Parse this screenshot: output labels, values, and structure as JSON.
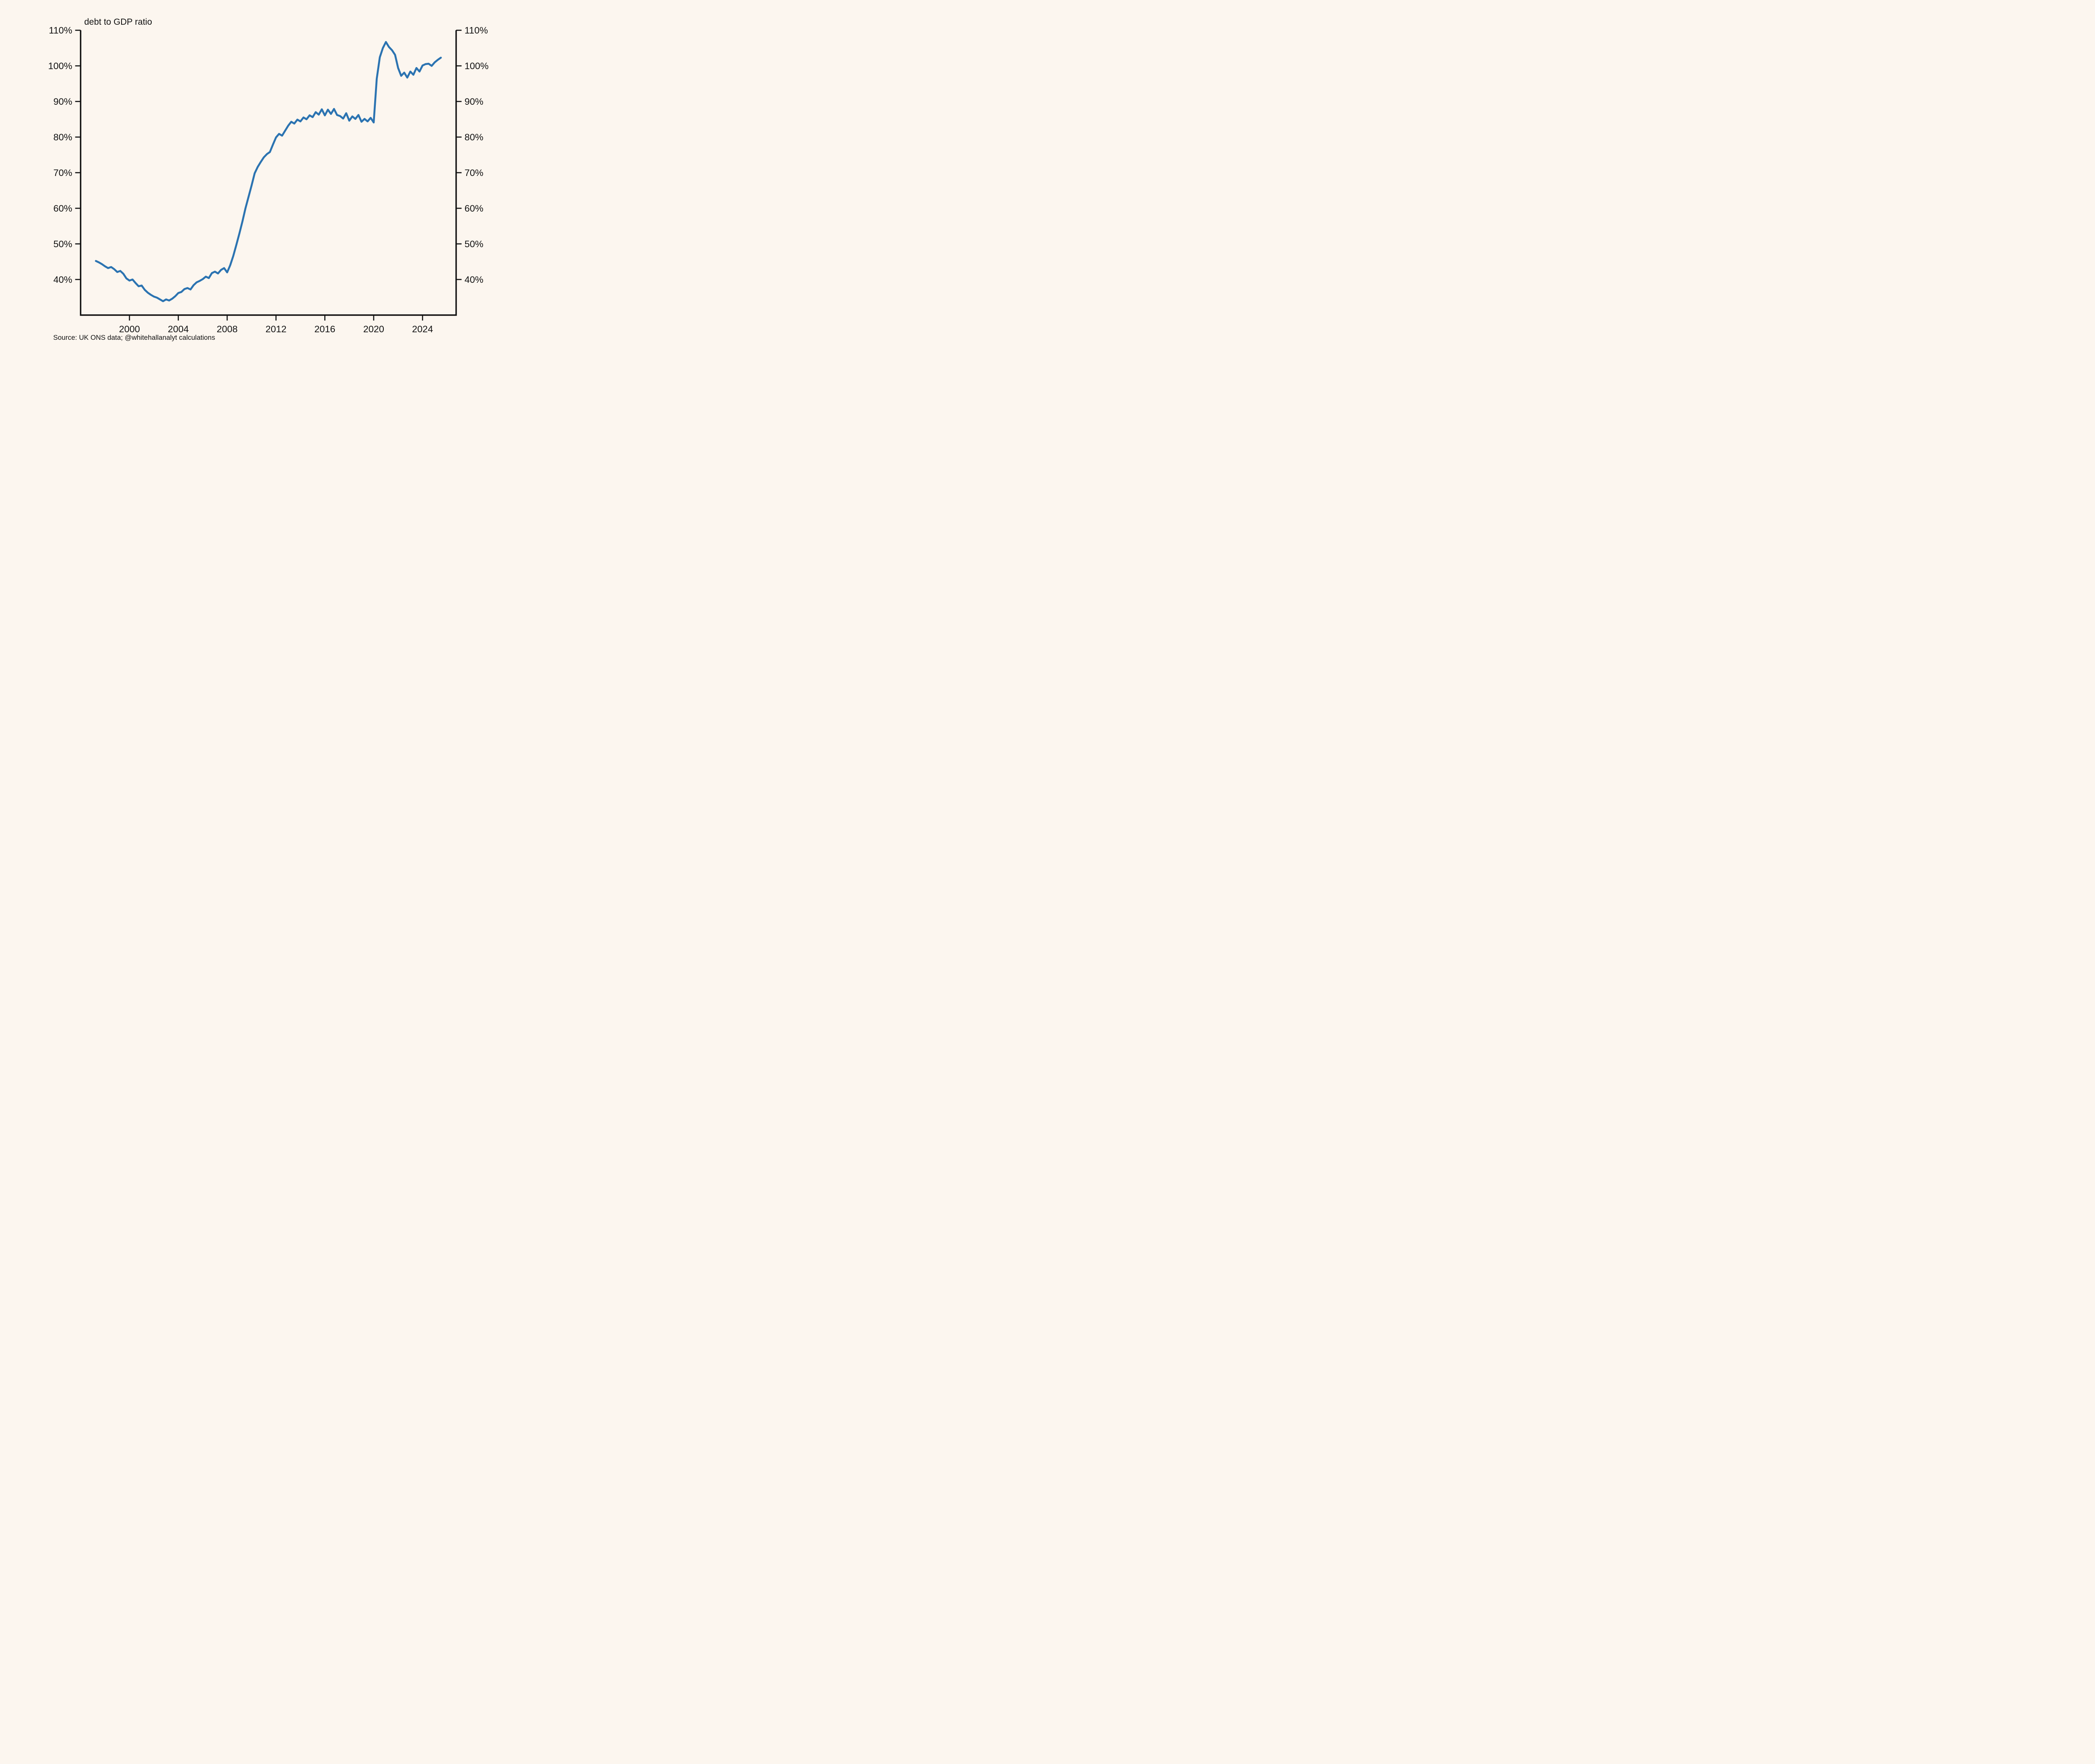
{
  "page": {
    "background_color": "#fcf6ef",
    "text_color": "#111111"
  },
  "chart_data": {
    "type": "line",
    "title": "debt to GDP ratio",
    "source_note": "Source: UK ONS data; @whitehallanalyt calculations",
    "line_color": "#2b73b1",
    "axis_color": "#111111",
    "grid": false,
    "legend": null,
    "xlim": [
      1996.0,
      2026.75
    ],
    "ylim": [
      30,
      110
    ],
    "x_ticks": [
      2000,
      2004,
      2008,
      2012,
      2016,
      2020,
      2024
    ],
    "x_tick_labels": [
      "2000",
      "2004",
      "2008",
      "2012",
      "2016",
      "2020",
      "2024"
    ],
    "y_ticks": [
      40,
      50,
      60,
      70,
      80,
      90,
      100,
      110
    ],
    "y_tick_labels_left": [
      "40%",
      "50%",
      "60%",
      "70%",
      "80%",
      "90%",
      "100%",
      "110%"
    ],
    "y_tick_labels_right": [
      "40%",
      "50%",
      "60%",
      "70%",
      "80%",
      "90%",
      "100%",
      "110%"
    ],
    "x": [
      1997.25,
      1997.5,
      1997.75,
      1998.0,
      1998.25,
      1998.5,
      1998.75,
      1999.0,
      1999.25,
      1999.5,
      1999.75,
      2000.0,
      2000.25,
      2000.5,
      2000.75,
      2001.0,
      2001.25,
      2001.5,
      2001.75,
      2002.0,
      2002.25,
      2002.5,
      2002.75,
      2003.0,
      2003.25,
      2003.5,
      2003.75,
      2004.0,
      2004.25,
      2004.5,
      2004.75,
      2005.0,
      2005.25,
      2005.5,
      2005.75,
      2006.0,
      2006.25,
      2006.5,
      2006.75,
      2007.0,
      2007.25,
      2007.5,
      2007.75,
      2008.0,
      2008.25,
      2008.5,
      2008.75,
      2009.0,
      2009.25,
      2009.5,
      2009.75,
      2010.0,
      2010.25,
      2010.5,
      2010.75,
      2011.0,
      2011.25,
      2011.5,
      2011.75,
      2012.0,
      2012.25,
      2012.5,
      2012.75,
      2013.0,
      2013.25,
      2013.5,
      2013.75,
      2014.0,
      2014.25,
      2014.5,
      2014.75,
      2015.0,
      2015.25,
      2015.5,
      2015.75,
      2016.0,
      2016.25,
      2016.5,
      2016.75,
      2017.0,
      2017.25,
      2017.5,
      2017.75,
      2018.0,
      2018.25,
      2018.5,
      2018.75,
      2019.0,
      2019.25,
      2019.5,
      2019.75,
      2020.0,
      2020.25,
      2020.5,
      2020.75,
      2021.0,
      2021.25,
      2021.5,
      2021.75,
      2022.0,
      2022.25,
      2022.5,
      2022.75,
      2023.0,
      2023.25,
      2023.5,
      2023.75,
      2024.0,
      2024.25,
      2024.5,
      2024.75,
      2025.0,
      2025.25,
      2025.5
    ],
    "values": [
      45.2,
      44.8,
      44.3,
      43.7,
      43.2,
      43.5,
      42.9,
      42.1,
      42.4,
      41.6,
      40.3,
      39.7,
      40.0,
      39.0,
      38.1,
      38.3,
      37.1,
      36.3,
      35.7,
      35.2,
      34.9,
      34.4,
      33.9,
      34.4,
      34.1,
      34.6,
      35.3,
      36.2,
      36.5,
      37.3,
      37.6,
      37.2,
      38.4,
      39.2,
      39.6,
      40.1,
      40.8,
      40.4,
      41.8,
      42.2,
      41.7,
      42.7,
      43.2,
      42.0,
      44.0,
      46.6,
      49.7,
      52.9,
      56.3,
      60.0,
      63.2,
      66.4,
      69.8,
      71.6,
      73.0,
      74.3,
      75.2,
      75.8,
      77.9,
      79.9,
      80.9,
      80.4,
      81.8,
      83.2,
      84.3,
      83.8,
      84.9,
      84.4,
      85.5,
      85.0,
      86.1,
      85.6,
      87.0,
      86.3,
      87.8,
      86.1,
      87.7,
      86.5,
      87.9,
      86.2,
      85.9,
      85.2,
      86.7,
      84.6,
      85.8,
      85.1,
      86.2,
      84.3,
      85.1,
      84.4,
      85.4,
      84.1,
      96.4,
      102.4,
      105.0,
      106.7,
      105.3,
      104.4,
      103.1,
      99.4,
      97.2,
      98.1,
      96.7,
      98.4,
      97.5,
      99.4,
      98.4,
      100.1,
      100.5,
      100.6,
      100.0,
      101.0,
      101.7,
      102.3
    ]
  }
}
